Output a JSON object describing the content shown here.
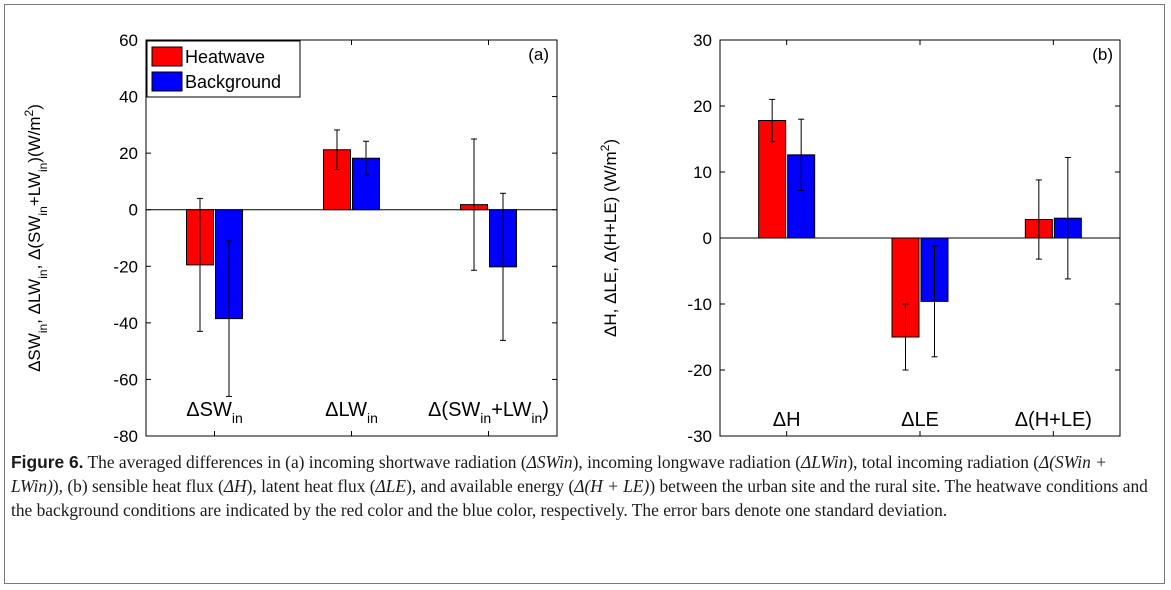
{
  "chart_data": [
    {
      "type": "bar",
      "panel_label": "(a)",
      "categories": [
        "ΔSWin",
        "ΔLWin",
        "Δ(SWin+LWin)"
      ],
      "series": [
        {
          "name": "Heatwave",
          "color": "#ff0000",
          "values": [
            -19.5,
            21.2,
            1.8
          ],
          "errors": [
            23.5,
            7.0,
            23.2
          ]
        },
        {
          "name": "Background",
          "color": "#0000ff",
          "values": [
            -38.5,
            18.2,
            -20.2
          ],
          "errors": [
            27.5,
            6.0,
            26.0
          ]
        }
      ],
      "ylabel": "ΔSWin, ΔLWin, Δ(SWin+LWin)(W/m2)",
      "ylim": [
        -80,
        60
      ],
      "yticks": [
        -80,
        -60,
        -40,
        -20,
        0,
        20,
        40,
        60
      ],
      "legend_position": "top-left"
    },
    {
      "type": "bar",
      "panel_label": "(b)",
      "categories": [
        "ΔH",
        "ΔLE",
        "Δ(H+LE)"
      ],
      "series": [
        {
          "name": "Heatwave",
          "color": "#ff0000",
          "values": [
            17.8,
            -15.0,
            2.8
          ],
          "errors": [
            3.2,
            5.0,
            6.0
          ]
        },
        {
          "name": "Background",
          "color": "#0000ff",
          "values": [
            12.6,
            -9.6,
            3.0
          ],
          "errors": [
            5.4,
            8.4,
            9.2
          ]
        }
      ],
      "ylabel": "ΔH, ΔLE, Δ(H+LE) (W/m2)",
      "ylim": [
        -30,
        30
      ],
      "yticks": [
        -30,
        -20,
        -10,
        0,
        10,
        20,
        30
      ]
    }
  ],
  "caption": {
    "label": "Figure 6.",
    "p1": " The averaged differences in (a) incoming shortwave radiation (",
    "v1": "ΔSWin",
    "p2": "), incoming longwave radiation (",
    "v2": "ΔLWin",
    "p3": "), total incoming radiation (",
    "v3": "Δ(SWin + LWin)",
    "p4": "), (b) sensible heat flux (",
    "v4": "ΔH",
    "p5": "), latent heat flux (",
    "v5": "ΔLE",
    "p6": "), and available energy (",
    "v6": "Δ(H + LE)",
    "p7": ") between the urban site and the rural site. The heatwave conditions and the background conditions are indicated by the red color and the blue color, respectively. The error bars denote one standard deviation."
  }
}
